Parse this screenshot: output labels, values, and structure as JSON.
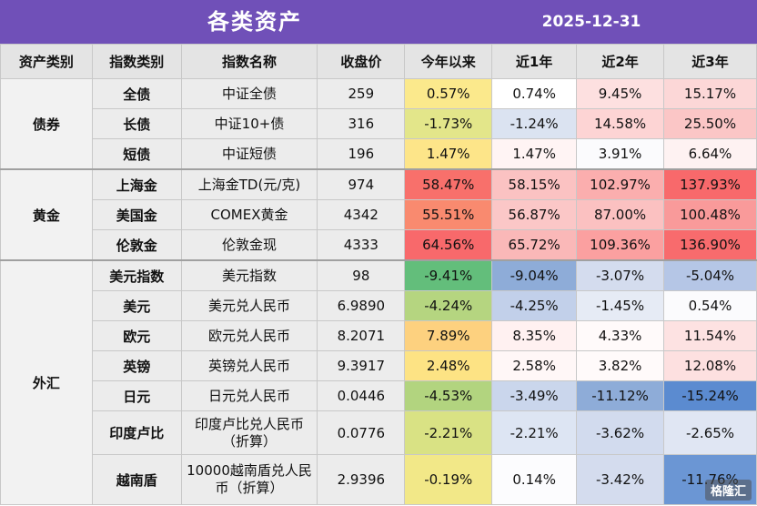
{
  "title": "各类资产",
  "date": "2025-12-31",
  "headers": [
    "资产类别",
    "指数类别",
    "指数名称",
    "收盘价",
    "今年以来",
    "近1年",
    "近2年",
    "近3年"
  ],
  "groups": [
    {
      "category": "债券",
      "rows": [
        {
          "sub": "全债",
          "name": "中证全债",
          "close": "259",
          "vals": [
            "0.57%",
            "0.74%",
            "9.45%",
            "15.17%"
          ],
          "colors": [
            "#fbe98c",
            "#ffffff",
            "#fde0e0",
            "#fcd7d7"
          ]
        },
        {
          "sub": "长债",
          "name": "中证10+债",
          "close": "316",
          "vals": [
            "-1.73%",
            "-1.24%",
            "14.58%",
            "25.50%"
          ],
          "colors": [
            "#e3e68a",
            "#dbe3f1",
            "#fdd4d4",
            "#fbc6c6"
          ]
        },
        {
          "sub": "短债",
          "name": "中证短债",
          "close": "196",
          "vals": [
            "1.47%",
            "1.47%",
            "3.91%",
            "6.64%"
          ],
          "colors": [
            "#fde589",
            "#fff4f4",
            "#fbfbfd",
            "#fef2f2"
          ]
        }
      ]
    },
    {
      "category": "黄金",
      "rows": [
        {
          "sub": "上海金",
          "name": "上海金TD(元/克)",
          "close": "974",
          "vals": [
            "58.47%",
            "58.15%",
            "102.97%",
            "137.93%"
          ],
          "colors": [
            "#f8706b",
            "#fbc2c2",
            "#fbaeae",
            "#f8696b"
          ]
        },
        {
          "sub": "美国金",
          "name": "COMEX黄金",
          "close": "4342",
          "vals": [
            "55.51%",
            "56.87%",
            "87.00%",
            "100.48%"
          ],
          "colors": [
            "#f98a6f",
            "#fbc7c7",
            "#fbc1c1",
            "#f99a9a"
          ]
        },
        {
          "sub": "伦敦金",
          "name": "伦敦金现",
          "close": "4333",
          "vals": [
            "64.56%",
            "65.72%",
            "109.36%",
            "136.90%"
          ],
          "colors": [
            "#f8696b",
            "#fab8b8",
            "#fba0a0",
            "#f86b6d"
          ]
        }
      ]
    },
    {
      "category": "外汇",
      "rows": [
        {
          "sub": "美元指数",
          "name": "美元指数",
          "close": "98",
          "vals": [
            "-9.41%",
            "-9.04%",
            "-3.07%",
            "-5.04%"
          ],
          "colors": [
            "#63be7b",
            "#8eacd8",
            "#d4dcee",
            "#b5c6e6"
          ]
        },
        {
          "sub": "美元",
          "name": "美元兑人民币",
          "close": "6.9890",
          "vals": [
            "-4.24%",
            "-4.25%",
            "-1.45%",
            "0.54%"
          ],
          "colors": [
            "#b5d580",
            "#c2d0ea",
            "#e6ebf5",
            "#fbfbfd"
          ]
        },
        {
          "sub": "欧元",
          "name": "欧元兑人民币",
          "close": "8.2071",
          "vals": [
            "7.89%",
            "8.35%",
            "4.33%",
            "11.54%"
          ],
          "colors": [
            "#fdd17f",
            "#fff1f1",
            "#fffafa",
            "#fde2e2"
          ]
        },
        {
          "sub": "英镑",
          "name": "英镑兑人民币",
          "close": "9.3917",
          "vals": [
            "2.48%",
            "2.58%",
            "3.82%",
            "12.08%"
          ],
          "colors": [
            "#fde384",
            "#fff7f7",
            "#fffafa",
            "#fde0e0"
          ]
        },
        {
          "sub": "日元",
          "name": "日元兑人民币",
          "close": "0.0446",
          "vals": [
            "-4.53%",
            "-3.49%",
            "-11.12%",
            "-15.24%"
          ],
          "colors": [
            "#b2d47f",
            "#cad6ec",
            "#8eacd8",
            "#5b8bd0"
          ]
        },
        {
          "sub": "印度卢比",
          "name": "印度卢比兑人民币（折算）",
          "close": "0.0776",
          "vals": [
            "-2.21%",
            "-2.21%",
            "-3.62%",
            "-2.65%"
          ],
          "colors": [
            "#d9e284",
            "#dde5f3",
            "#d2dbee",
            "#e0e6f3"
          ]
        },
        {
          "sub": "越南盾",
          "name": "10000越南盾兑人民币（折算）",
          "close": "2.9396",
          "vals": [
            "-0.19%",
            "0.14%",
            "-3.42%",
            "-11.76%"
          ],
          "colors": [
            "#f2e888",
            "#fcfcfe",
            "#d4dcee",
            "#6b96d4"
          ]
        }
      ]
    }
  ],
  "watermark": "格隆汇"
}
